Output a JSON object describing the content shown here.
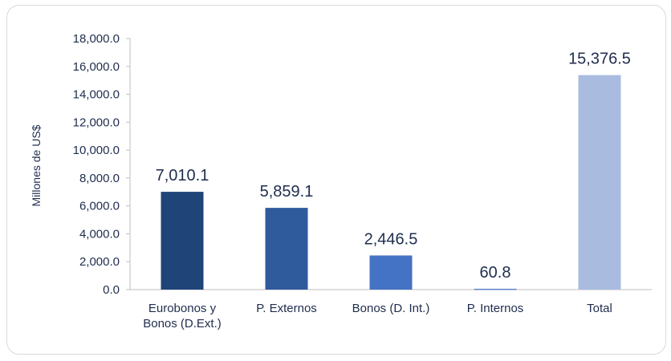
{
  "chart_data": {
    "type": "bar",
    "title": "",
    "xlabel": "",
    "ylabel": "Millones de US$",
    "ylim": [
      0,
      18000
    ],
    "y_ticks": [
      "0.0",
      "2,000.0",
      "4,000.0",
      "6,000.0",
      "8,000.0",
      "10,000.0",
      "12,000.0",
      "14,000.0",
      "16,000.0",
      "18,000.0"
    ],
    "categories": [
      [
        "Eurobonos y",
        "Bonos (D.Ext.)"
      ],
      [
        "P. Externos"
      ],
      [
        "Bonos (D. Int.)"
      ],
      [
        "P. Internos"
      ],
      [
        "Total"
      ]
    ],
    "values": [
      7010.1,
      5859.1,
      2446.5,
      60.8,
      15376.5
    ],
    "data_labels": [
      "7,010.1",
      "5,859.1",
      "2,446.5",
      "60.8",
      "15,376.5"
    ],
    "colors": [
      "#1f4478",
      "#2f5a9c",
      "#4472c4",
      "#5b83c9",
      "#a9bcdf"
    ],
    "grid": false,
    "legend": "none"
  }
}
